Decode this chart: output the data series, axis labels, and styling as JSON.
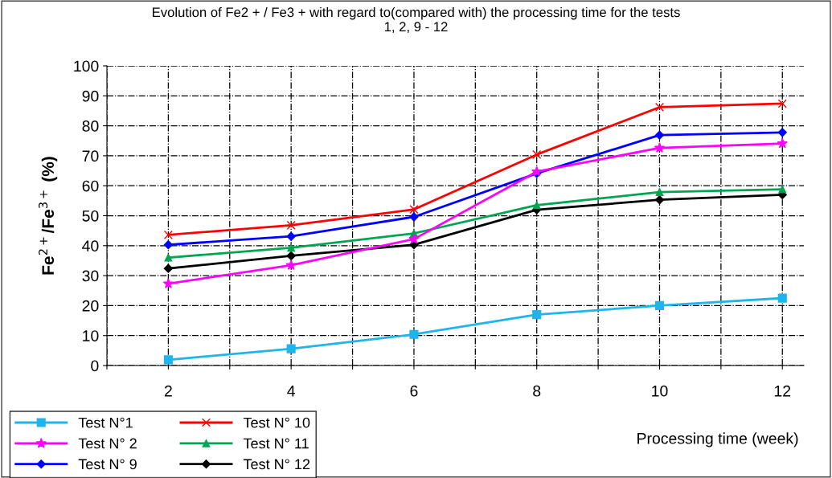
{
  "chart_data": {
    "type": "line",
    "title": "Evolution of Fe2 + / Fe3 + with regard to(compared with) the processing time for the tests\n1, 2, 9 - 12",
    "xlabel": "Processing time (week)",
    "ylabel": "Fe$^{2+}$/Fe$^{3+}$ (%)",
    "x": [
      2,
      4,
      6,
      8,
      10,
      12
    ],
    "series": [
      {
        "name": "Test N°1",
        "color": "#1fb4ec",
        "marker": "square",
        "values": [
          1.9,
          5.6,
          10.4,
          17,
          20,
          22.5
        ]
      },
      {
        "name": "Test N° 2",
        "color": "#ff00ff",
        "marker": "star",
        "values": [
          27.3,
          33.5,
          42.2,
          64.7,
          72.6,
          74.1
        ]
      },
      {
        "name": "Test N° 9",
        "color": "#0000ff",
        "marker": "diamond",
        "values": [
          40.3,
          43.1,
          49.6,
          64.1,
          76.9,
          77.8
        ]
      },
      {
        "name": "Test N° 10",
        "color": "#ff0000",
        "marker": "cross",
        "values": [
          43.6,
          46.8,
          52.1,
          70.4,
          86.2,
          87.4
        ]
      },
      {
        "name": "Test N° 11",
        "color": "#00a550",
        "marker": "triangle",
        "values": [
          36,
          39.3,
          44.1,
          53.5,
          57.9,
          58.8
        ]
      },
      {
        "name": "Test N° 12",
        "color": "#000000",
        "marker": "diamond",
        "values": [
          32.4,
          36.6,
          40.3,
          52,
          55.3,
          57
        ]
      }
    ],
    "xlim": [
      1,
      12.35
    ],
    "xticks": [
      {
        "value": 1,
        "label": null
      },
      2,
      {
        "value": 3,
        "label": null
      },
      4,
      {
        "value": 5,
        "label": null
      },
      6,
      {
        "value": 7,
        "label": null
      },
      8,
      {
        "value": 9,
        "label": null
      },
      10,
      {
        "value": 11,
        "label": null
      },
      12
    ],
    "ylim": [
      0,
      100
    ],
    "yticks": [
      0,
      10,
      20,
      30,
      40,
      50,
      60,
      70,
      80,
      90,
      100
    ],
    "grid": true,
    "legend": "bottom left",
    "line_style": "solid"
  }
}
